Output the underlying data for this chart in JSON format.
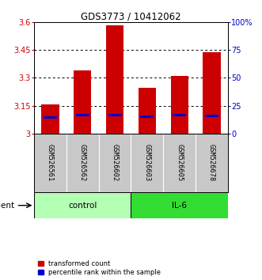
{
  "title": "GDS3773 / 10412062",
  "samples": [
    "GSM526561",
    "GSM526562",
    "GSM526602",
    "GSM526603",
    "GSM526605",
    "GSM526678"
  ],
  "red_values": [
    3.155,
    3.34,
    3.585,
    3.245,
    3.31,
    3.44
  ],
  "blue_values": [
    3.085,
    3.098,
    3.1,
    3.092,
    3.098,
    3.096
  ],
  "ylim_left": [
    3.0,
    3.6
  ],
  "yticks_left": [
    3.0,
    3.15,
    3.3,
    3.45,
    3.6
  ],
  "ytick_labels_left": [
    "3",
    "3.15",
    "3.3",
    "3.45",
    "3.6"
  ],
  "ylim_right": [
    0,
    100
  ],
  "yticks_right": [
    0,
    25,
    50,
    75,
    100
  ],
  "ytick_labels_right": [
    "0",
    "25",
    "50",
    "75",
    "100%"
  ],
  "groups": [
    {
      "label": "control",
      "color": "#b3ffb3",
      "start": 0,
      "end": 2
    },
    {
      "label": "IL-6",
      "color": "#33dd33",
      "start": 3,
      "end": 5
    }
  ],
  "bar_width": 0.55,
  "bar_bottom": 3.0,
  "red_color": "#cc0000",
  "blue_color": "#0000cc",
  "bg_color": "#ffffff",
  "label_bg": "#c8c8c8",
  "agent_label": "agent",
  "legend_red": "transformed count",
  "legend_blue": "percentile rank within the sample"
}
